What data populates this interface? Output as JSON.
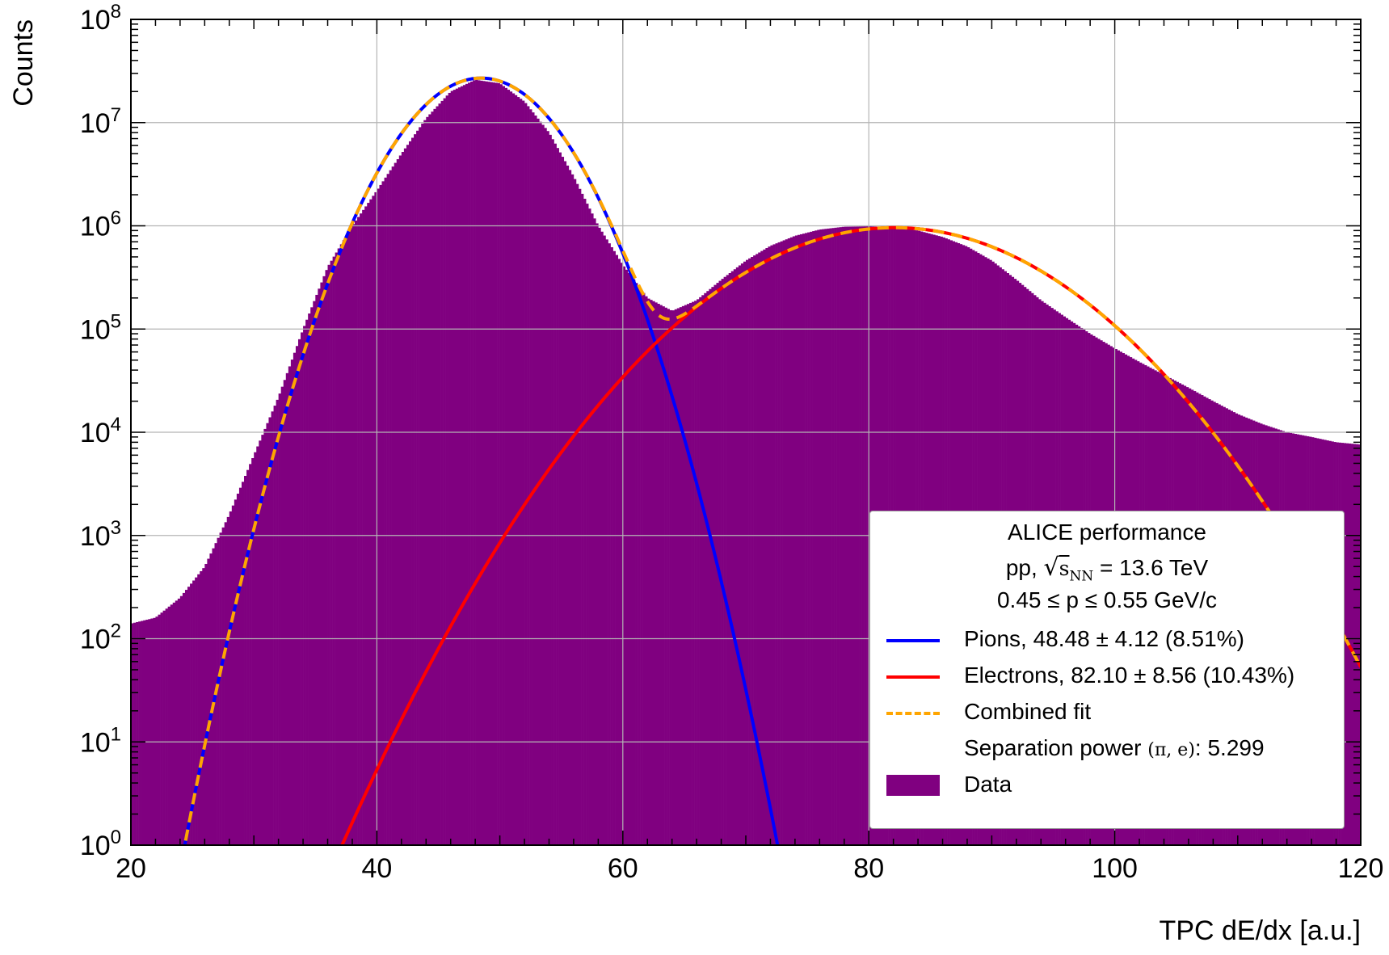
{
  "chart_data": {
    "type": "histogram",
    "ylabel": "Counts",
    "xlabel": "TPC dE/dx [a.u.]",
    "xlim": [
      20,
      120
    ],
    "ylim": [
      1,
      100000000
    ],
    "y_scale": "log",
    "grid": true,
    "x_ticks": [
      "20",
      "40",
      "60",
      "80",
      "100",
      "120"
    ],
    "y_ticks": [
      {
        "base": "10",
        "exp": "0"
      },
      {
        "base": "10",
        "exp": "1"
      },
      {
        "base": "10",
        "exp": "2"
      },
      {
        "base": "10",
        "exp": "3"
      },
      {
        "base": "10",
        "exp": "4"
      },
      {
        "base": "10",
        "exp": "5"
      },
      {
        "base": "10",
        "exp": "6"
      },
      {
        "base": "10",
        "exp": "7"
      },
      {
        "base": "10",
        "exp": "8"
      }
    ],
    "histogram": {
      "name": "Data",
      "color": "#800080",
      "x": [
        20,
        22,
        24,
        26,
        28,
        30,
        32,
        34,
        36,
        38,
        40,
        42,
        44,
        46,
        48,
        50,
        52,
        54,
        56,
        58,
        60,
        62,
        64,
        66,
        68,
        70,
        72,
        74,
        76,
        78,
        80,
        82,
        84,
        86,
        88,
        90,
        92,
        94,
        96,
        98,
        100,
        102,
        104,
        106,
        108,
        110,
        112,
        114,
        116,
        118,
        120
      ],
      "y": [
        140,
        160,
        250,
        500,
        1600,
        6000,
        22000,
        100000,
        400000,
        1000000,
        2200000,
        5000000,
        11000000,
        20000000,
        26000000,
        24000000,
        16000000,
        8000000,
        3000000,
        1000000,
        420000,
        200000,
        150000,
        190000,
        300000,
        460000,
        640000,
        800000,
        920000,
        980000,
        990000,
        970000,
        900000,
        780000,
        630000,
        460000,
        300000,
        190000,
        130000,
        90000,
        65000,
        48000,
        36000,
        27000,
        20000,
        15000,
        12000,
        10000,
        9000,
        8000,
        7600
      ]
    },
    "fits": [
      {
        "name": "Pions",
        "color": "#0000ff",
        "style": "solid",
        "mean": 48.48,
        "sigma": 4.12,
        "amplitude": 27000000
      },
      {
        "name": "Electrons",
        "color": "#ff0000",
        "style": "solid",
        "mean": 82.1,
        "sigma": 8.56,
        "amplitude": 960000
      },
      {
        "name": "Combined fit",
        "color": "#ffa500",
        "style": "dashed"
      }
    ]
  },
  "legend": {
    "title": "ALICE performance",
    "line2_prefix": "pp, ",
    "line2_sqrt": "√",
    "line2_s": "s",
    "line2_sub": "NN",
    "line2_suffix": " = 13.6 TeV",
    "line3": "0.45 ≤ p ≤ 0.55 GeV/c",
    "pions_label": "Pions,",
    "pions_value": "48.48 ± 4.12 (8.51%)",
    "electrons_label": "Electrons,",
    "electrons_value": "82.10 ± 8.56 (10.43%)",
    "combined_label": "Combined fit",
    "separation_label": "Separation power",
    "separation_math": "(π, e)",
    "separation_value": ": 5.299",
    "data_label": "Data"
  }
}
